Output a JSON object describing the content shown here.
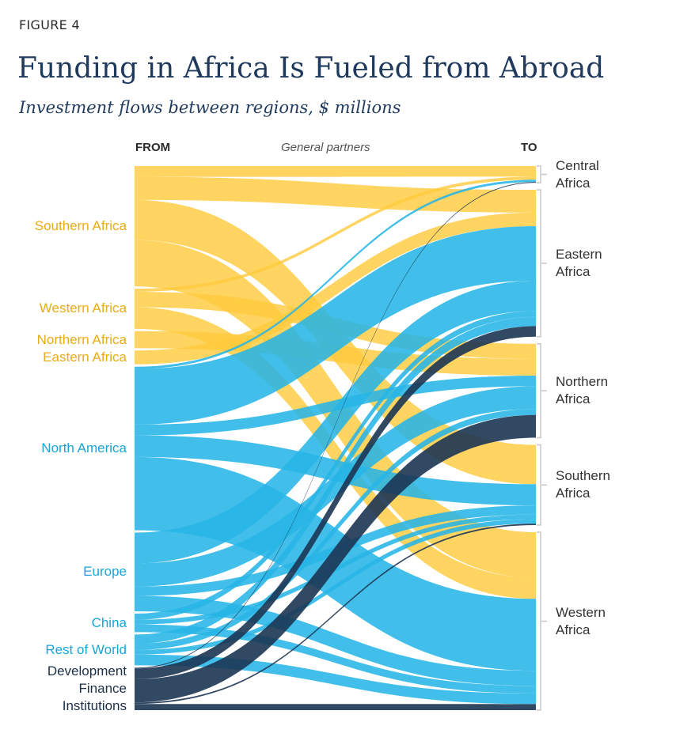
{
  "figure_label": "FIGURE 4",
  "title": "Funding in Africa Is Fueled from Abroad",
  "subtitle": "Investment flows between regions, $ millions",
  "colors": {
    "africa": "#ffcb3d",
    "foreign": "#27b5e6",
    "dfi": "#1c3553",
    "target_bar": "#c8c8c8"
  },
  "chart_data": {
    "type": "sankey",
    "headers": {
      "from": "FROM",
      "middle": "General partners",
      "to": "TO"
    },
    "sources": [
      {
        "name": "Southern Africa",
        "group": "africa"
      },
      {
        "name": "Western Africa",
        "group": "africa"
      },
      {
        "name": "Northern Africa",
        "group": "africa"
      },
      {
        "name": "Eastern Africa",
        "group": "africa"
      },
      {
        "name": "North America",
        "group": "foreign"
      },
      {
        "name": "Europe",
        "group": "foreign"
      },
      {
        "name": "China",
        "group": "foreign"
      },
      {
        "name": "Rest of World",
        "group": "foreign"
      },
      {
        "name": "Development Finance Institutions",
        "group": "dfi"
      }
    ],
    "targets": [
      {
        "name": "Central Africa",
        "lines": [
          "Central",
          "Africa"
        ]
      },
      {
        "name": "Eastern Africa",
        "lines": [
          "Eastern",
          "Africa"
        ]
      },
      {
        "name": "Northern Africa",
        "lines": [
          "Northern",
          "Africa"
        ]
      },
      {
        "name": "Southern Africa",
        "lines": [
          "Southern",
          "Africa"
        ]
      },
      {
        "name": "Western Africa",
        "lines": [
          "Western",
          "Africa"
        ]
      }
    ],
    "flows": [
      {
        "from": "Southern Africa",
        "to": "Central Africa",
        "value": 14
      },
      {
        "from": "Southern Africa",
        "to": "Eastern Africa",
        "value": 30
      },
      {
        "from": "Southern Africa",
        "to": "Southern Africa",
        "value": 52
      },
      {
        "from": "Southern Africa",
        "to": "Western Africa",
        "value": 60
      },
      {
        "from": "Western Africa",
        "to": "Central Africa",
        "value": 4
      },
      {
        "from": "Western Africa",
        "to": "Northern Africa",
        "value": 20
      },
      {
        "from": "Western Africa",
        "to": "Western Africa",
        "value": 28
      },
      {
        "from": "Northern Africa",
        "to": "Northern Africa",
        "value": 22
      },
      {
        "from": "Eastern Africa",
        "to": "Eastern Africa",
        "value": 18
      },
      {
        "from": "North America",
        "to": "Central Africa",
        "value": 3
      },
      {
        "from": "North America",
        "to": "Eastern Africa",
        "value": 72
      },
      {
        "from": "North America",
        "to": "Northern Africa",
        "value": 14
      },
      {
        "from": "North America",
        "to": "Southern Africa",
        "value": 28
      },
      {
        "from": "North America",
        "to": "Western Africa",
        "value": 95
      },
      {
        "from": "Europe",
        "to": "Eastern Africa",
        "value": 40
      },
      {
        "from": "Europe",
        "to": "Northern Africa",
        "value": 30
      },
      {
        "from": "Europe",
        "to": "Southern Africa",
        "value": 12
      },
      {
        "from": "Europe",
        "to": "Western Africa",
        "value": 20
      },
      {
        "from": "China",
        "to": "Eastern Africa",
        "value": 8
      },
      {
        "from": "China",
        "to": "Southern Africa",
        "value": 6
      },
      {
        "from": "China",
        "to": "Western Africa",
        "value": 10
      },
      {
        "from": "Rest of World",
        "to": "Eastern Africa",
        "value": 12
      },
      {
        "from": "Rest of World",
        "to": "Northern Africa",
        "value": 8
      },
      {
        "from": "Rest of World",
        "to": "Southern Africa",
        "value": 6
      },
      {
        "from": "Rest of World",
        "to": "Western Africa",
        "value": 14
      },
      {
        "from": "Development Finance Institutions",
        "to": "Central Africa",
        "value": 1
      },
      {
        "from": "Development Finance Institutions",
        "to": "Eastern Africa",
        "value": 14
      },
      {
        "from": "Development Finance Institutions",
        "to": "Northern Africa",
        "value": 30
      },
      {
        "from": "Development Finance Institutions",
        "to": "Southern Africa",
        "value": 2
      },
      {
        "from": "Development Finance Institutions",
        "to": "Western Africa",
        "value": 8
      }
    ]
  }
}
